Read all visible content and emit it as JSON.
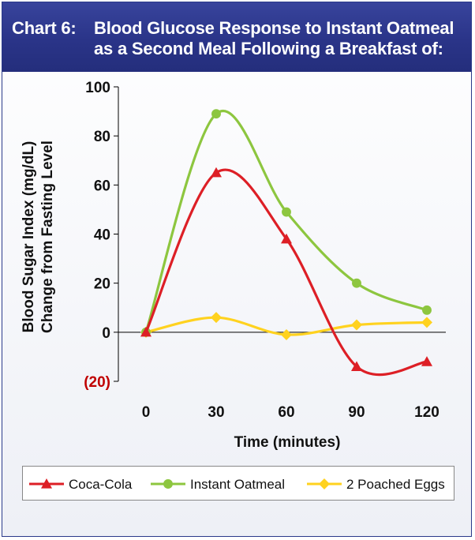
{
  "header": {
    "prefix": "Chart 6:",
    "line1": "Blood Glucose Response to Instant Oatmeal",
    "line2": "as a Second Meal Following a Breakfast of:"
  },
  "colors": {
    "header_bg": "#2a3488",
    "coca_cola": "#dd1f26",
    "oatmeal": "#8dc63f",
    "eggs": "#ffd21f",
    "negative_tick": "#c00000"
  },
  "chart_data": {
    "type": "line",
    "title": "Blood Glucose Response to Instant Oatmeal as a Second Meal Following a Breakfast of:",
    "xlabel": "Time (minutes)",
    "ylabel_line1": "Blood Sugar Index (mg/dL)",
    "ylabel_line2": "Change from Fasting Level",
    "x": [
      0,
      30,
      60,
      90,
      120
    ],
    "xlim": [
      -10,
      125
    ],
    "ylim": [
      -20,
      100
    ],
    "xticks": [
      0,
      30,
      60,
      90,
      120
    ],
    "xtick_labels": [
      "0",
      "30",
      "60",
      "90",
      "120"
    ],
    "yticks": [
      -20,
      0,
      20,
      40,
      60,
      80,
      100
    ],
    "ytick_labels": [
      "(20)",
      "0",
      "20",
      "40",
      "60",
      "80",
      "100"
    ],
    "grid": false,
    "legend_position": "bottom",
    "series": [
      {
        "name": "Coca-Cola",
        "marker": "triangle",
        "values": [
          0,
          65,
          38,
          -14,
          -12
        ]
      },
      {
        "name": "Instant Oatmeal",
        "marker": "circle",
        "values": [
          0,
          89,
          49,
          20,
          9
        ]
      },
      {
        "name": "2 Poached Eggs",
        "marker": "diamond",
        "values": [
          0,
          6,
          -1,
          3,
          4
        ]
      }
    ]
  }
}
